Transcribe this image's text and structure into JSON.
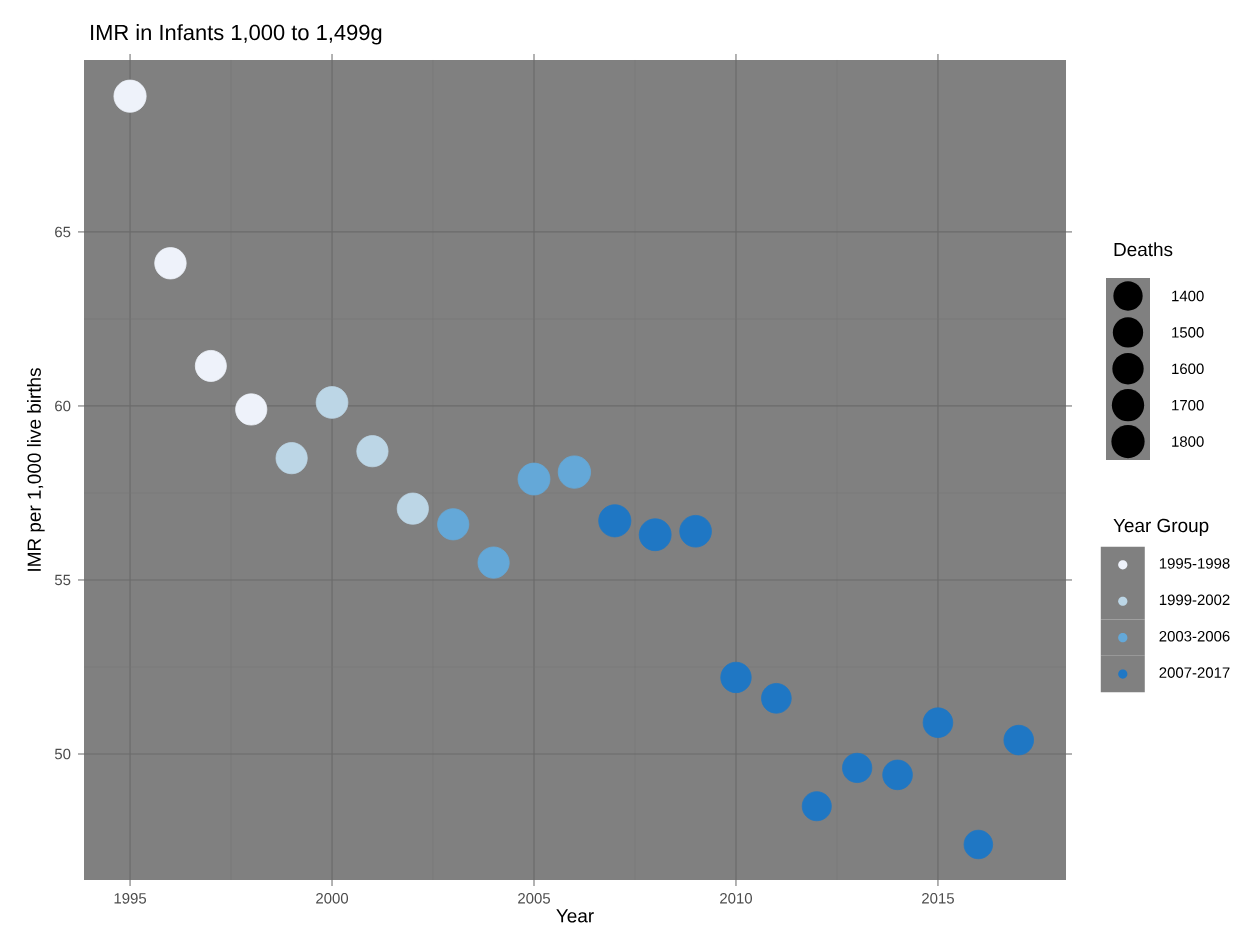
{
  "chart_data": {
    "type": "bubble",
    "title": "IMR in Infants 1,000 to 1,499g",
    "xlabel": "Year",
    "ylabel": "IMR per 1,000 live births",
    "legend_title": "Year Group",
    "annotations": [
      "Deaths"
    ],
    "size_legend": [
      1400,
      1500,
      1600,
      1700,
      1800
    ],
    "xlim": [
      1993.86,
      2018.17
    ],
    "ylim": [
      46.38,
      69.94
    ],
    "xticks": [
      1995,
      2000,
      2005,
      2010,
      2015
    ],
    "yticks": [
      50,
      55,
      60,
      65
    ],
    "grid": true,
    "legend": "right",
    "marker": "circle",
    "series": [
      {
        "name": "1995-1998",
        "color": "#eef2fa",
        "x": [
          1995,
          1996,
          1997,
          1998
        ],
        "values": [
          68.9,
          64.1,
          61.15,
          59.9
        ],
        "sizes": [
          1700,
          1620,
          1580,
          1600
        ]
      },
      {
        "name": "1999-2002",
        "color": "#bcd6e6",
        "x": [
          1999,
          2000,
          2001,
          2002
        ],
        "values": [
          58.5,
          60.1,
          58.7,
          57.05
        ],
        "sizes": [
          1600,
          1650,
          1600,
          1600
        ]
      },
      {
        "name": "2003-2006",
        "color": "#64a8d8",
        "x": [
          2003,
          2004,
          2005,
          2006
        ],
        "values": [
          56.6,
          55.5,
          57.9,
          58.1
        ],
        "sizes": [
          1600,
          1600,
          1670,
          1720
        ]
      },
      {
        "name": "2007-2017",
        "color": "#1f77c4",
        "x": [
          2007,
          2008,
          2009,
          2010,
          2011,
          2012,
          2013,
          2014,
          2015,
          2016,
          2017
        ],
        "values": [
          56.7,
          56.3,
          56.4,
          52.2,
          51.6,
          48.5,
          49.6,
          49.4,
          50.9,
          47.4,
          50.4
        ],
        "sizes": [
          1700,
          1670,
          1650,
          1520,
          1450,
          1390,
          1410,
          1440,
          1440,
          1340,
          1440
        ]
      }
    ]
  }
}
